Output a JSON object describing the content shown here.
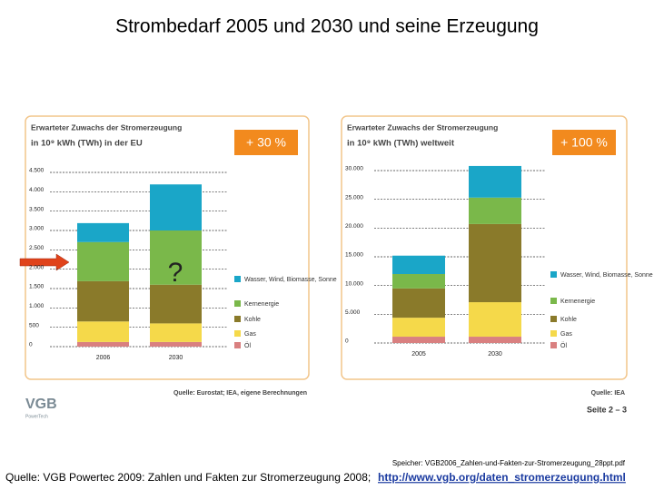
{
  "slide": {
    "title": "Strombedarf 2005 und 2030 und seine Erzeugung",
    "logo": "VGB",
    "logo_sub": "PowerTech",
    "page": "Seite 2 – 3",
    "storage": "Speicher: VGB2006_Zahlen-und-Fakten-zur-Stromerzeugung_28ppt.pdf",
    "source": "Quelle: VGB Powertec 2009: Zahlen und Fakten zur Stromerzeugung 2008;",
    "link": "http://www.vgb.org/daten_stromerzeugung.html"
  },
  "chart_data": [
    {
      "type": "stacked_bar",
      "title": "Erwarteter Zuwachs der Stromerzeugung",
      "subtitle": "in 10⁹ kWh (TWh) in der EU",
      "badge": "+ 30 %",
      "annotation": "?",
      "source": "Quelle: Eurostat; IEA, eigene Berechnungen",
      "categories": [
        "2006",
        "2030"
      ],
      "series": [
        {
          "name": "Öl",
          "color": "#d98080",
          "values": [
            120,
            120
          ]
        },
        {
          "name": "Gas",
          "color": "#f5d94a",
          "values": [
            530,
            480
          ]
        },
        {
          "name": "Kohle",
          "color": "#8a7a2a",
          "values": [
            1040,
            1000
          ]
        },
        {
          "name": "Kernenergie",
          "color": "#7ab84a",
          "values": [
            1010,
            1400
          ]
        },
        {
          "name": "Wasser, Wind, Biomasse, Sonne",
          "color": "#1aa6c8",
          "values": [
            490,
            1190
          ]
        }
      ],
      "ylim": [
        0,
        4500
      ],
      "yticks": [
        0,
        500,
        {
          "value": 1000,
          "label": "1.000"
        },
        {
          "value": 1500,
          "label": "1.500"
        },
        {
          "value": 2000,
          "label": "2.000"
        },
        {
          "value": 2500,
          "label": "2.500"
        },
        {
          "value": 3000,
          "label": "3.000"
        },
        {
          "value": 3500,
          "label": "3.500"
        },
        {
          "value": 4000,
          "label": "4.000"
        },
        {
          "value": 4500,
          "label": "4.500"
        }
      ],
      "grid": true
    },
    {
      "type": "stacked_bar",
      "title": "Erwarteter Zuwachs der Stromerzeugung",
      "subtitle": "in 10⁹ kWh (TWh) weltweit",
      "badge": "+ 100 %",
      "source": "Quelle: IEA",
      "categories": [
        "2005",
        "2030"
      ],
      "series": [
        {
          "name": "Öl",
          "color": "#d98080",
          "values": [
            1100,
            1100
          ]
        },
        {
          "name": "Gas",
          "color": "#f5d94a",
          "values": [
            3300,
            6000
          ]
        },
        {
          "name": "Kohle",
          "color": "#8a7a2a",
          "values": [
            5100,
            13600
          ]
        },
        {
          "name": "Kernenergie",
          "color": "#7ab84a",
          "values": [
            2500,
            4600
          ]
        },
        {
          "name": "Wasser, Wind, Biomasse, Sonne",
          "color": "#1aa6c8",
          "values": [
            3200,
            5500
          ]
        }
      ],
      "ylim": [
        0,
        30000
      ],
      "yticks": [
        0,
        {
          "value": 5000,
          "label": "5.000"
        },
        {
          "value": 10000,
          "label": "10.000"
        },
        {
          "value": 15000,
          "label": "15.000"
        },
        {
          "value": 20000,
          "label": "20.000"
        },
        {
          "value": 25000,
          "label": "25.000"
        },
        {
          "value": 30000,
          "label": "30.000"
        }
      ],
      "grid": true
    }
  ]
}
